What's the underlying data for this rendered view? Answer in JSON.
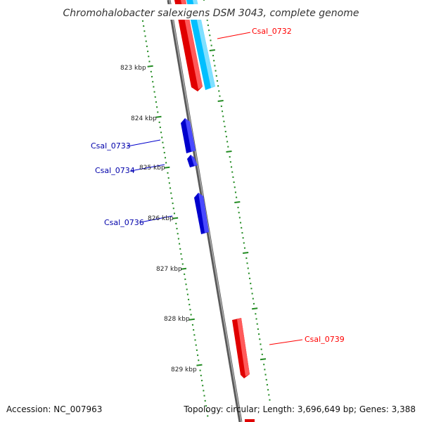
{
  "title": "Chromohalobacter salexigens DSM 3043, complete genome",
  "footer": {
    "accession": "Accession: NC_007963",
    "summary": "Topology: circular; Length: 3,696,649 bp; Genes: 3,388"
  },
  "colors": {
    "forward_gene": "#ff0000",
    "reverse_gene": "#0000ff",
    "rna_gene": "#00bfff",
    "scale_ticks": "#228b22",
    "backbone": "#808080"
  },
  "scale": {
    "unit": "kbp",
    "tick_labels": [
      "823 kbp",
      "824 kbp",
      "825 kbp",
      "826 kbp",
      "827 kbp",
      "828 kbp",
      "829 kbp"
    ]
  },
  "genes": [
    {
      "id": "Csal_0732",
      "label": "Csal_0732",
      "strand": "forward",
      "label_color": "#ff0000"
    },
    {
      "id": "Csal_0733",
      "label": "Csal_0733",
      "strand": "reverse",
      "label_color": "#0000aa"
    },
    {
      "id": "Csal_0734",
      "label": "Csal_0734",
      "strand": "reverse",
      "label_color": "#0000aa"
    },
    {
      "id": "Csal_0736",
      "label": "Csal_0736",
      "strand": "reverse",
      "label_color": "#0000aa"
    },
    {
      "id": "Csal_0739",
      "label": "Csal_0739",
      "strand": "forward",
      "label_color": "#ff0000"
    }
  ]
}
